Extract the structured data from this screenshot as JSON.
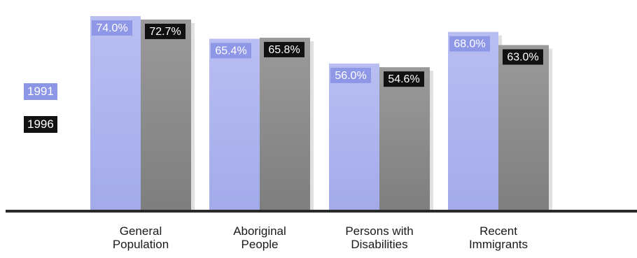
{
  "chart_data": {
    "type": "bar",
    "categories": [
      [
        "General",
        "Population"
      ],
      [
        "Aboriginal",
        "People"
      ],
      [
        "Persons with",
        "Disabilities"
      ],
      [
        "Recent",
        "Immigrants"
      ]
    ],
    "series": [
      {
        "name": "1991",
        "values": [
          74.0,
          65.4,
          56.0,
          68.0
        ],
        "labels": [
          "74.0%",
          "65.4%",
          "56.0%",
          "68.0%"
        ],
        "color": "#8c95e6"
      },
      {
        "name": "1996",
        "values": [
          72.7,
          65.8,
          54.6,
          63.0
        ],
        "labels": [
          "72.7%",
          "65.8%",
          "54.6%",
          "63.0%"
        ],
        "color": "#111111"
      }
    ],
    "legend": {
      "placement": "left"
    },
    "ylim": [
      0,
      80
    ],
    "grid": false,
    "bar_fill_colors": {
      "1991": "#aab1ee",
      "1996": "#8a8a8a"
    },
    "baseline_color": "#2a2a2a"
  }
}
